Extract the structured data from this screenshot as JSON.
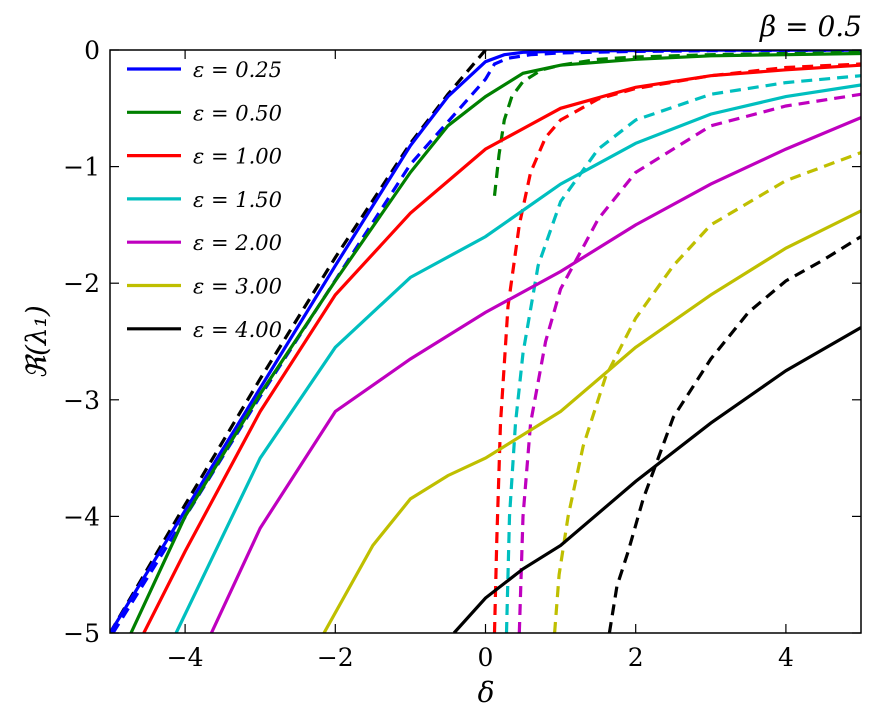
{
  "chart_data": {
    "type": "line",
    "title": "β = 0.5",
    "xlabel": "δ",
    "ylabel": "ℜ(λ₁)",
    "xlim": [
      -5,
      5
    ],
    "ylim": [
      -5,
      0
    ],
    "x_ticks": [
      -4,
      -2,
      0,
      2,
      4
    ],
    "x_tick_labels": [
      "−4",
      "−2",
      "0",
      "2",
      "4"
    ],
    "y_ticks": [
      0,
      -1,
      -2,
      -3,
      -4,
      -5
    ],
    "y_tick_labels": [
      "0",
      "−1",
      "−2",
      "−3",
      "−4",
      "−5"
    ],
    "grid": false,
    "legend_position": "top-left",
    "series": [
      {
        "name": "ε = 0.25",
        "color": "#0000ff",
        "solid": [
          [
            -5.0,
            -5.0
          ],
          [
            -4.0,
            -3.95
          ],
          [
            -3.0,
            -2.9
          ],
          [
            -2.0,
            -1.85
          ],
          [
            -1.0,
            -0.82
          ],
          [
            -0.5,
            -0.4
          ],
          [
            0.0,
            -0.1
          ],
          [
            0.25,
            -0.04
          ],
          [
            0.5,
            -0.02
          ],
          [
            1.0,
            -0.01
          ],
          [
            2.0,
            -0.004
          ],
          [
            3.0,
            -0.002
          ],
          [
            5.0,
            -0.001
          ]
        ],
        "dashed": [
          [
            -4.96,
            -5.0
          ],
          [
            -3.0,
            -2.97
          ],
          [
            -1.0,
            -0.98
          ],
          [
            0.0,
            -0.25
          ],
          [
            0.12,
            -0.12
          ],
          [
            0.3,
            -0.07
          ],
          [
            0.6,
            -0.04
          ],
          [
            1.0,
            -0.025
          ],
          [
            2.0,
            -0.012
          ],
          [
            3.0,
            -0.006
          ],
          [
            5.0,
            -0.003
          ]
        ]
      },
      {
        "name": "ε = 0.50",
        "color": "#008000",
        "solid": [
          [
            -4.72,
            -5.0
          ],
          [
            -4.0,
            -4.0
          ],
          [
            -3.0,
            -2.95
          ],
          [
            -2.0,
            -1.98
          ],
          [
            -1.0,
            -1.05
          ],
          [
            -0.5,
            -0.65
          ],
          [
            0.0,
            -0.4
          ],
          [
            0.5,
            -0.2
          ],
          [
            1.0,
            -0.13
          ],
          [
            2.0,
            -0.08
          ],
          [
            3.0,
            -0.05
          ],
          [
            4.0,
            -0.04
          ],
          [
            5.0,
            -0.03
          ]
        ],
        "dashed": [
          [
            0.12,
            -1.25
          ],
          [
            0.18,
            -0.9
          ],
          [
            0.25,
            -0.6
          ],
          [
            0.35,
            -0.4
          ],
          [
            0.5,
            -0.27
          ],
          [
            0.75,
            -0.17
          ],
          [
            1.0,
            -0.13
          ],
          [
            1.5,
            -0.08
          ],
          [
            2.0,
            -0.06
          ],
          [
            3.0,
            -0.04
          ],
          [
            5.0,
            -0.02
          ]
        ]
      },
      {
        "name": "ε = 1.00",
        "color": "#ff0000",
        "solid": [
          [
            -4.55,
            -5.0
          ],
          [
            -4.0,
            -4.3
          ],
          [
            -3.0,
            -3.1
          ],
          [
            -2.0,
            -2.1
          ],
          [
            -1.0,
            -1.4
          ],
          [
            0.0,
            -0.85
          ],
          [
            1.0,
            -0.5
          ],
          [
            2.0,
            -0.32
          ],
          [
            3.0,
            -0.22
          ],
          [
            4.0,
            -0.17
          ],
          [
            5.0,
            -0.13
          ]
        ],
        "dashed": [
          [
            0.12,
            -5.0
          ],
          [
            0.15,
            -4.2
          ],
          [
            0.2,
            -3.2
          ],
          [
            0.3,
            -2.2
          ],
          [
            0.45,
            -1.5
          ],
          [
            0.6,
            -1.05
          ],
          [
            0.8,
            -0.75
          ],
          [
            1.0,
            -0.6
          ],
          [
            1.5,
            -0.42
          ],
          [
            2.0,
            -0.33
          ],
          [
            3.0,
            -0.22
          ],
          [
            4.0,
            -0.15
          ],
          [
            5.0,
            -0.12
          ]
        ]
      },
      {
        "name": "ε = 1.50",
        "color": "#00bfbf",
        "solid": [
          [
            -4.12,
            -5.0
          ],
          [
            -3.0,
            -3.5
          ],
          [
            -2.0,
            -2.55
          ],
          [
            -1.0,
            -1.95
          ],
          [
            0.0,
            -1.6
          ],
          [
            1.0,
            -1.15
          ],
          [
            2.0,
            -0.8
          ],
          [
            3.0,
            -0.55
          ],
          [
            4.0,
            -0.4
          ],
          [
            5.0,
            -0.3
          ]
        ],
        "dashed": [
          [
            0.28,
            -5.0
          ],
          [
            0.32,
            -4.0
          ],
          [
            0.4,
            -3.2
          ],
          [
            0.5,
            -2.6
          ],
          [
            0.7,
            -1.85
          ],
          [
            1.0,
            -1.3
          ],
          [
            1.5,
            -0.85
          ],
          [
            2.0,
            -0.6
          ],
          [
            3.0,
            -0.38
          ],
          [
            4.0,
            -0.28
          ],
          [
            5.0,
            -0.22
          ]
        ]
      },
      {
        "name": "ε = 2.00",
        "color": "#bf00bf",
        "solid": [
          [
            -3.65,
            -5.0
          ],
          [
            -3.0,
            -4.1
          ],
          [
            -2.0,
            -3.1
          ],
          [
            -1.0,
            -2.65
          ],
          [
            0.0,
            -2.25
          ],
          [
            1.0,
            -1.9
          ],
          [
            2.0,
            -1.5
          ],
          [
            3.0,
            -1.15
          ],
          [
            4.0,
            -0.85
          ],
          [
            5.0,
            -0.58
          ]
        ],
        "dashed": [
          [
            0.45,
            -5.0
          ],
          [
            0.5,
            -4.0
          ],
          [
            0.6,
            -3.2
          ],
          [
            0.8,
            -2.5
          ],
          [
            1.0,
            -2.05
          ],
          [
            1.5,
            -1.45
          ],
          [
            2.0,
            -1.05
          ],
          [
            3.0,
            -0.65
          ],
          [
            4.0,
            -0.48
          ],
          [
            5.0,
            -0.38
          ]
        ]
      },
      {
        "name": "ε = 3.00",
        "color": "#bfbf00",
        "solid": [
          [
            -2.15,
            -5.0
          ],
          [
            -1.5,
            -4.25
          ],
          [
            -1.0,
            -3.85
          ],
          [
            -0.5,
            -3.65
          ],
          [
            0.0,
            -3.5
          ],
          [
            1.0,
            -3.1
          ],
          [
            2.0,
            -2.55
          ],
          [
            3.0,
            -2.1
          ],
          [
            4.0,
            -1.7
          ],
          [
            5.0,
            -1.38
          ]
        ],
        "dashed": [
          [
            0.92,
            -5.0
          ],
          [
            0.98,
            -4.5
          ],
          [
            1.1,
            -4.0
          ],
          [
            1.3,
            -3.4
          ],
          [
            1.6,
            -2.8
          ],
          [
            2.0,
            -2.3
          ],
          [
            2.5,
            -1.85
          ],
          [
            3.0,
            -1.5
          ],
          [
            4.0,
            -1.12
          ],
          [
            5.0,
            -0.88
          ]
        ]
      },
      {
        "name": "ε = 4.00",
        "color": "#000000",
        "solid": [
          [
            -0.42,
            -5.0
          ],
          [
            0.0,
            -4.7
          ],
          [
            0.5,
            -4.45
          ],
          [
            1.0,
            -4.25
          ],
          [
            2.0,
            -3.7
          ],
          [
            3.0,
            -3.2
          ],
          [
            4.0,
            -2.75
          ],
          [
            5.0,
            -2.38
          ]
        ],
        "dashed": [
          [
            1.65,
            -5.0
          ],
          [
            1.75,
            -4.6
          ],
          [
            1.9,
            -4.3
          ],
          [
            2.1,
            -3.85
          ],
          [
            2.5,
            -3.15
          ],
          [
            3.0,
            -2.65
          ],
          [
            3.5,
            -2.25
          ],
          [
            4.0,
            -1.98
          ],
          [
            4.5,
            -1.8
          ],
          [
            5.0,
            -1.6
          ]
        ]
      }
    ],
    "extra_lines": [
      {
        "color": "#000000",
        "style": "dashed",
        "points": [
          [
            -5.0,
            -5.0
          ],
          [
            -4.0,
            -3.9
          ],
          [
            -3.0,
            -2.82
          ],
          [
            -2.0,
            -1.78
          ],
          [
            -1.0,
            -0.8
          ],
          [
            -0.5,
            -0.38
          ],
          [
            0.0,
            0.0
          ]
        ]
      }
    ]
  }
}
